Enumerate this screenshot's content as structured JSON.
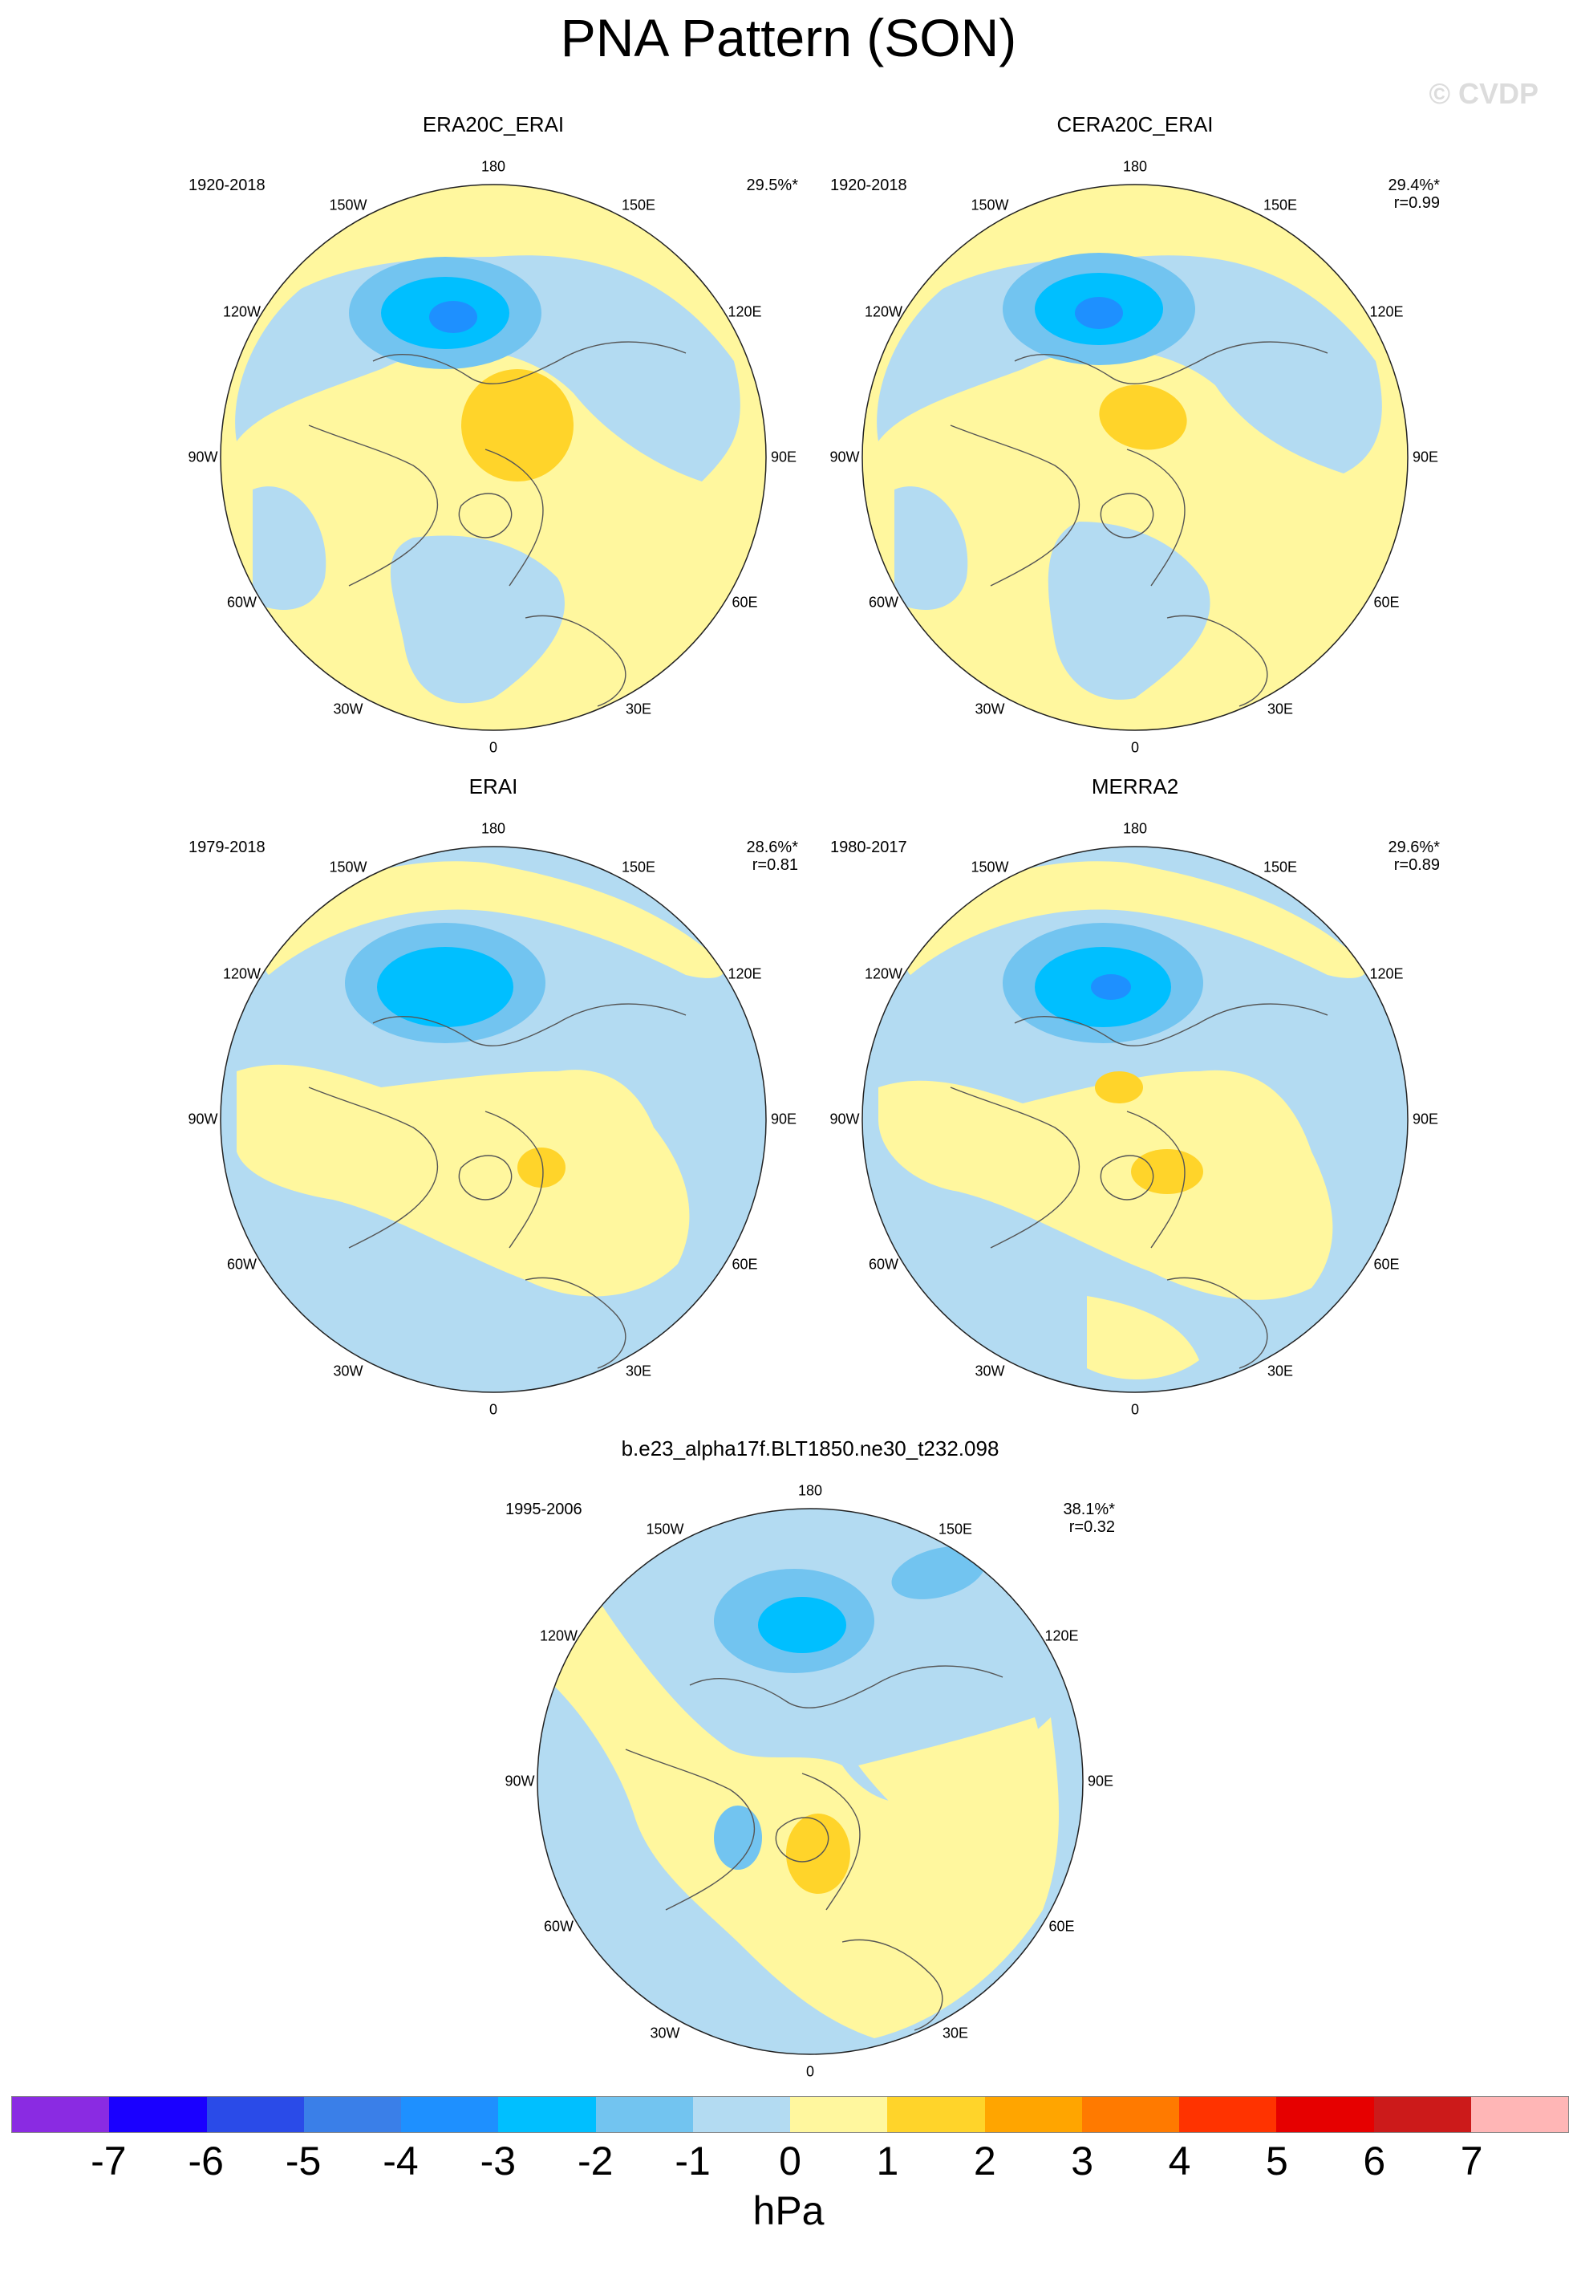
{
  "title": "PNA Pattern (SON)",
  "copyright": "© CVDP",
  "lon_labels": [
    "180",
    "150E",
    "120E",
    "90E",
    "60E",
    "30E",
    "0",
    "30W",
    "60W",
    "90W",
    "120W",
    "150W"
  ],
  "colors": {
    "ocean_neg1": "#b3dbf2",
    "neg2": "#72c4f0",
    "neg3": "#00bfff",
    "neg4": "#1e90ff",
    "pos1": "#fff79e",
    "pos2": "#ffd42a",
    "coast": "#555555"
  },
  "panels": [
    {
      "title": "ERA20C_ERAI",
      "period": "1920-2018",
      "pct": "29.5%*",
      "r": ""
    },
    {
      "title": "CERA20C_ERAI",
      "period": "1920-2018",
      "pct": "29.4%*",
      "r": "r=0.99"
    },
    {
      "title": "ERAI",
      "period": "1979-2018",
      "pct": "28.6%*",
      "r": "r=0.81"
    },
    {
      "title": "MERRA2",
      "period": "1980-2017",
      "pct": "29.6%*",
      "r": "r=0.89"
    },
    {
      "title": "b.e23_alpha17f.BLT1850.ne30_t232.098",
      "period": "1995-2006",
      "pct": "38.1%*",
      "r": "r=0.32"
    }
  ],
  "colorbar": {
    "colors": [
      "#8a2be2",
      "#1a00ff",
      "#2a4be8",
      "#3a7fe8",
      "#1e90ff",
      "#00bfff",
      "#72c4f0",
      "#b3dbf2",
      "#fff79e",
      "#ffd42a",
      "#ffa500",
      "#ff7a00",
      "#ff3300",
      "#e60000",
      "#cc1a1a",
      "#ffb6b6"
    ],
    "labels": [
      "-7",
      "-6",
      "-5",
      "-4",
      "-3",
      "-2",
      "-1",
      "0",
      "1",
      "2",
      "3",
      "4",
      "5",
      "6",
      "7"
    ],
    "units": "hPa"
  }
}
